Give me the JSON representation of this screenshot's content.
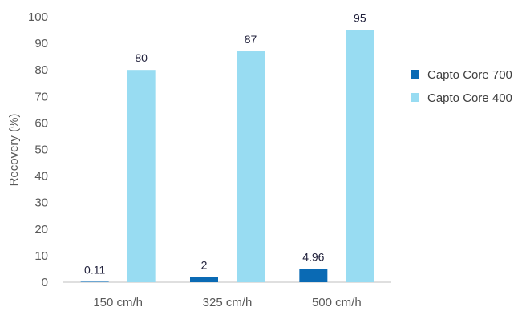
{
  "chart_data": {
    "type": "bar",
    "categories": [
      "150 cm/h",
      "325 cm/h",
      "500 cm/h"
    ],
    "series": [
      {
        "name": "Capto Core 700",
        "values": [
          0.11,
          2,
          4.96
        ],
        "labels": [
          "0.11",
          "2",
          "4.96"
        ],
        "color": "#0a6ab4"
      },
      {
        "name": "Capto Core 400",
        "values": [
          80,
          87,
          95
        ],
        "labels": [
          "80",
          "87",
          "95"
        ],
        "color": "#98dcf2"
      }
    ],
    "ylabel": "Recovery (%)",
    "ylim": [
      0,
      100
    ],
    "yticks": [
      0,
      10,
      20,
      30,
      40,
      50,
      60,
      70,
      80,
      90,
      100
    ],
    "grid": false,
    "legend_position": "right"
  }
}
